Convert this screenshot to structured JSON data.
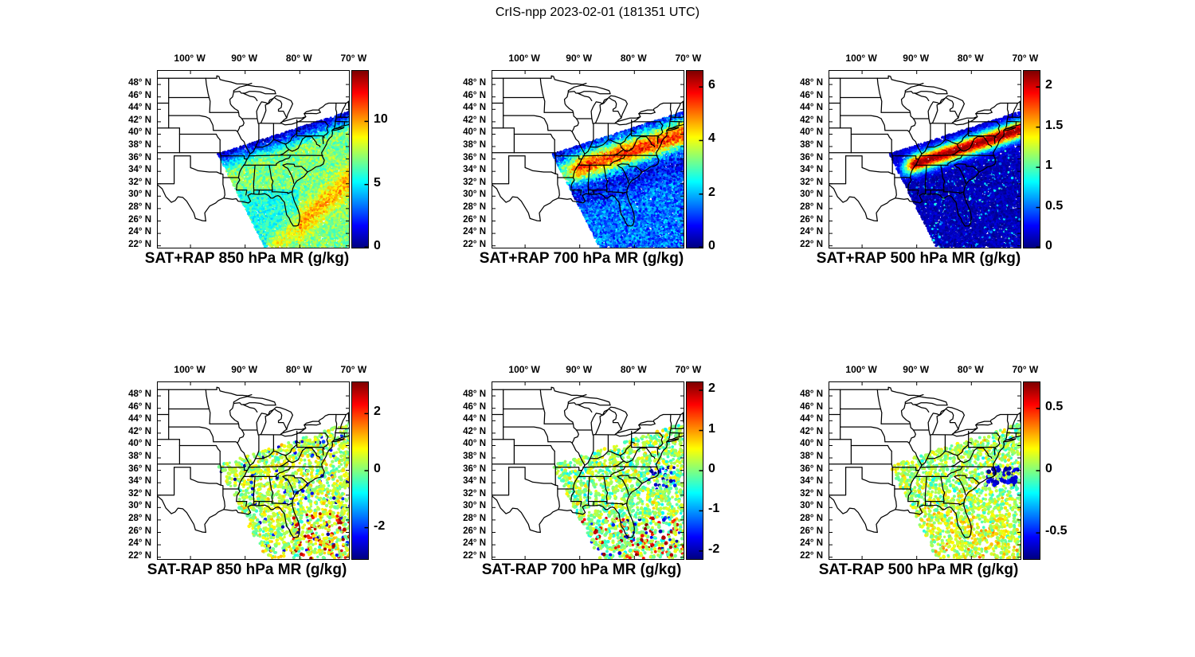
{
  "figure_title": "CrIS-npp 2023-02-01 (181351 UTC)",
  "chart_data": {
    "type": "scatter",
    "suptitle": "CrIS-npp 2023-02-01 (181351 UTC)",
    "instrument": "CrIS-npp",
    "date": "2023-02-01",
    "time_utc": "181351 UTC",
    "grid": {
      "rows": 2,
      "cols": 3
    },
    "colormap": "jet",
    "background_color": "#FFFFFF",
    "boundary_color": "#000000",
    "lon_range": [
      -106,
      -71
    ],
    "lat_range": [
      21.7,
      50.2
    ],
    "x_axis": {
      "tick_labels": [
        "100° W",
        "90° W",
        "80° W",
        "70° W"
      ],
      "tick_values": [
        -100,
        -90,
        -80,
        -70
      ]
    },
    "y_axis": {
      "tick_labels": [
        "48° N",
        "46° N",
        "44° N",
        "42° N",
        "40° N",
        "38° N",
        "36° N",
        "34° N",
        "32° N",
        "30° N",
        "28° N",
        "26° N",
        "24° N",
        "22° N"
      ],
      "tick_values": [
        48,
        46,
        44,
        42,
        40,
        38,
        36,
        34,
        32,
        30,
        28,
        26,
        24,
        22
      ]
    },
    "swath_outline_lonlat": [
      [
        -95,
        36.8
      ],
      [
        -68,
        44.5
      ],
      [
        -66,
        22
      ],
      [
        -86.5,
        22
      ]
    ],
    "panels": [
      {
        "title": "SAT+RAP 850 hPa MR (g/kg)",
        "row": 0,
        "col": 0,
        "units": "g/kg",
        "colorbar": {
          "min": 0,
          "max": 14,
          "tick_values": [
            10,
            5,
            0
          ],
          "tick_labels": [
            "10",
            "5",
            "0"
          ]
        },
        "summary": "Dense retrieval swath over the southeastern U.S. and western Atlantic. About 1-2 g/kg (dark blue) along the northwestern swath edge, 5-8 g/kg (green-yellow) across the Tennessee/Carolinas band, 4-6 g/kg (cyan) over the Gulf and Florida, and 8-10 g/kg (orange) streaks over the Atlantic to the southeast."
      },
      {
        "title": "SAT+RAP 700 hPa MR (g/kg)",
        "row": 0,
        "col": 1,
        "units": "g/kg",
        "colorbar": {
          "min": 0,
          "max": 6.6,
          "tick_values": [
            6,
            4,
            2,
            0
          ],
          "tick_labels": [
            "6",
            "4",
            "2",
            "0"
          ]
        },
        "summary": "Dry (below 1 g/kg, dark blue) along the northwestern swath edge; moist band of 4-6 g/kg (orange-red) from Arkansas across the Carolinas into the Atlantic; 1-3 g/kg (blue-cyan) over the Gulf of Mexico and Florida."
      },
      {
        "title": "SAT+RAP 500 hPa MR (g/kg)",
        "row": 0,
        "col": 2,
        "units": "g/kg",
        "colorbar": {
          "min": 0,
          "max": 2.2,
          "tick_values": [
            2,
            1.5,
            1,
            0.5,
            0
          ],
          "tick_labels": [
            "2",
            "1.5",
            "1",
            "0.5",
            "0"
          ]
        },
        "summary": "Mostly below 0.3 g/kg (dark blue); a narrow moist band up to about 2 g/kg (red) from Arkansas/Tennessee across the Carolinas into the Atlantic; scattered cyan speckle to the south."
      },
      {
        "title": "SAT-RAP 850 hPa MR (g/kg)",
        "row": 1,
        "col": 0,
        "units": "g/kg",
        "colorbar": {
          "min": -3.1,
          "max": 3.1,
          "tick_values": [
            2,
            0,
            -2
          ],
          "tick_labels": [
            "2",
            "0",
            "-2"
          ]
        },
        "summary": "Differences mostly 0 to +1 g/kg (green-yellow speckle); scattered +2 to +3 (orange-red) southeast of Florida; scattered negative (blue) dots near the Georgia coast."
      },
      {
        "title": "SAT-RAP 700 hPa MR (g/kg)",
        "row": 1,
        "col": 1,
        "units": "g/kg",
        "colorbar": {
          "min": -2.2,
          "max": 2.2,
          "tick_values": [
            2,
            1,
            0,
            -1,
            -2
          ],
          "tick_labels": [
            "2",
            "1",
            "0",
            "-1",
            "-2"
          ]
        },
        "summary": "Differences mostly within +/-0.5 g/kg (cyan-green speckle); scattered +1 to +2 (red) south of 28N; cluster of -1 to -2 (blue) dots near the Carolina coast."
      },
      {
        "title": "SAT-RAP 500 hPa MR (g/kg)",
        "row": 1,
        "col": 2,
        "units": "g/kg",
        "colorbar": {
          "min": -0.71,
          "max": 0.71,
          "tick_values": [
            0.5,
            0,
            -0.5
          ],
          "tick_labels": [
            "0.5",
            "0",
            "-0.5"
          ]
        },
        "summary": "Differences mostly within +/-0.2 g/kg (cyan-green); cluster of -0.5 to -0.7 (dark blue) dots off the Carolina coast; +0.2 to +0.4 (yellow-green) south of 30N."
      }
    ]
  }
}
